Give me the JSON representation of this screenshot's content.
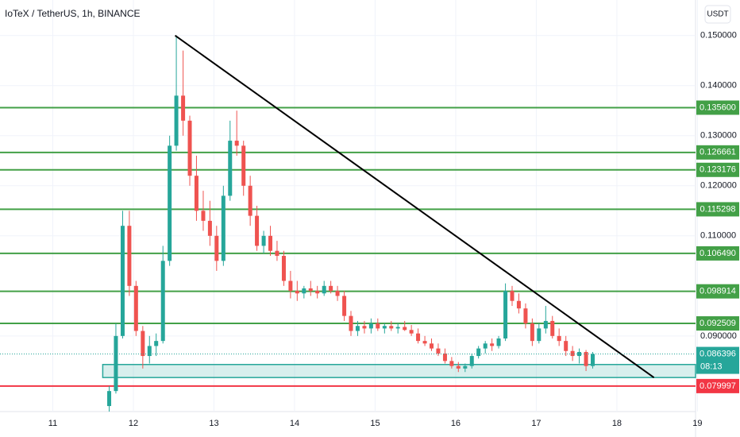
{
  "chart_data": {
    "type": "candlestick",
    "title": "IoTeX / TetherUS, 1h, BINANCE",
    "currency": "USDT",
    "up_color": "#26a69a",
    "down_color": "#ef5350",
    "grid": true,
    "xlim": [
      10.345,
      18.976
    ],
    "ylim": [
      0.0749,
      0.1571
    ],
    "xticks": [
      11,
      12,
      13,
      14,
      15,
      16,
      17,
      18,
      19
    ],
    "yticks": [
      {
        "value": 0.15,
        "label": "0.150000"
      },
      {
        "value": 0.14,
        "label": "0.140000"
      },
      {
        "value": 0.13,
        "label": "0.130000"
      },
      {
        "value": 0.12,
        "label": "0.120000"
      },
      {
        "value": 0.11,
        "label": "0.110000"
      },
      {
        "value": 0.09,
        "label": "0.090000"
      }
    ],
    "x": [
      11.7,
      11.783,
      11.867,
      11.95,
      12.033,
      12.117,
      12.2,
      12.283,
      12.367,
      12.45,
      12.533,
      12.617,
      12.7,
      12.783,
      12.867,
      12.95,
      13.033,
      13.117,
      13.2,
      13.283,
      13.367,
      13.45,
      13.533,
      13.617,
      13.7,
      13.783,
      13.867,
      13.95,
      14.033,
      14.117,
      14.2,
      14.283,
      14.367,
      14.45,
      14.533,
      14.617,
      14.7,
      14.783,
      14.867,
      14.95,
      15.033,
      15.117,
      15.2,
      15.283,
      15.367,
      15.45,
      15.533,
      15.617,
      15.7,
      15.783,
      15.867,
      15.95,
      16.033,
      16.117,
      16.2,
      16.283,
      16.367,
      16.45,
      16.533,
      16.617,
      16.7,
      16.783,
      16.867,
      16.95,
      17.033,
      17.117,
      17.2,
      17.283,
      17.367,
      17.45,
      17.533,
      17.617,
      17.7
    ],
    "open": [
      0.076,
      0.079,
      0.09,
      0.112,
      0.1,
      0.091,
      0.086,
      0.088,
      0.089,
      0.105,
      0.128,
      0.138,
      0.133,
      0.122,
      0.115,
      0.113,
      0.11,
      0.105,
      0.118,
      0.129,
      0.128,
      0.12,
      0.114,
      0.108,
      0.11,
      0.107,
      0.106,
      0.101,
      0.099,
      0.0985,
      0.0995,
      0.099,
      0.0985,
      0.1,
      0.099,
      0.098,
      0.094,
      0.091,
      0.092,
      0.0915,
      0.0925,
      0.0915,
      0.092,
      0.0915,
      0.0918,
      0.0912,
      0.0905,
      0.089,
      0.0885,
      0.0875,
      0.0865,
      0.085,
      0.084,
      0.0835,
      0.084,
      0.086,
      0.0875,
      0.0885,
      0.088,
      0.0895,
      0.099,
      0.097,
      0.0955,
      0.0925,
      0.089,
      0.0915,
      0.093,
      0.09,
      0.089,
      0.087,
      0.086,
      0.0868,
      0.084
    ],
    "high": [
      0.08,
      0.0925,
      0.115,
      0.115,
      0.101,
      0.092,
      0.09,
      0.0905,
      0.108,
      0.13,
      0.15,
      0.147,
      0.134,
      0.126,
      0.119,
      0.117,
      0.112,
      0.12,
      0.133,
      0.135,
      0.129,
      0.122,
      0.116,
      0.111,
      0.112,
      0.109,
      0.107,
      0.103,
      0.101,
      0.1,
      0.101,
      0.1,
      0.101,
      0.101,
      0.1,
      0.099,
      0.095,
      0.093,
      0.093,
      0.0935,
      0.0935,
      0.0925,
      0.093,
      0.0925,
      0.093,
      0.0922,
      0.0915,
      0.09,
      0.0895,
      0.0885,
      0.0875,
      0.0858,
      0.0848,
      0.0845,
      0.0865,
      0.088,
      0.089,
      0.0895,
      0.09,
      0.1005,
      0.1,
      0.0985,
      0.0965,
      0.0935,
      0.0925,
      0.096,
      0.094,
      0.0915,
      0.09,
      0.088,
      0.0875,
      0.0872,
      0.0868
    ],
    "low": [
      0.0749,
      0.0785,
      0.0895,
      0.098,
      0.09,
      0.0835,
      0.0845,
      0.086,
      0.0885,
      0.104,
      0.127,
      0.13,
      0.12,
      0.113,
      0.111,
      0.108,
      0.103,
      0.104,
      0.117,
      0.126,
      0.118,
      0.112,
      0.107,
      0.1065,
      0.106,
      0.105,
      0.1,
      0.0975,
      0.097,
      0.0975,
      0.098,
      0.0975,
      0.098,
      0.0985,
      0.097,
      0.093,
      0.09,
      0.09,
      0.0905,
      0.0905,
      0.091,
      0.0905,
      0.091,
      0.0905,
      0.091,
      0.09,
      0.0885,
      0.088,
      0.087,
      0.086,
      0.0845,
      0.0835,
      0.0828,
      0.0828,
      0.0835,
      0.0855,
      0.0865,
      0.087,
      0.0875,
      0.089,
      0.096,
      0.0945,
      0.0915,
      0.088,
      0.0885,
      0.0905,
      0.0895,
      0.088,
      0.086,
      0.085,
      0.0845,
      0.083,
      0.0835
    ],
    "close": [
      0.079,
      0.09,
      0.112,
      0.1,
      0.091,
      0.086,
      0.088,
      0.089,
      0.105,
      0.128,
      0.138,
      0.133,
      0.122,
      0.115,
      0.113,
      0.11,
      0.105,
      0.118,
      0.129,
      0.128,
      0.12,
      0.114,
      0.108,
      0.11,
      0.107,
      0.106,
      0.101,
      0.099,
      0.0985,
      0.0995,
      0.099,
      0.0985,
      0.1,
      0.099,
      0.098,
      0.094,
      0.091,
      0.092,
      0.0915,
      0.0925,
      0.0915,
      0.092,
      0.0915,
      0.0918,
      0.0912,
      0.0905,
      0.089,
      0.0885,
      0.0875,
      0.0865,
      0.085,
      0.084,
      0.0835,
      0.084,
      0.086,
      0.0875,
      0.0885,
      0.088,
      0.0895,
      0.099,
      0.097,
      0.0955,
      0.0925,
      0.089,
      0.0915,
      0.093,
      0.09,
      0.089,
      0.087,
      0.086,
      0.0868,
      0.084,
      0.0864
    ],
    "levels": [
      {
        "value": 0.1356,
        "label": "0.135600",
        "color": "#43a047"
      },
      {
        "value": 0.126661,
        "label": "0.126661",
        "color": "#43a047"
      },
      {
        "value": 0.123176,
        "label": "0.123176",
        "color": "#43a047"
      },
      {
        "value": 0.115298,
        "label": "0.115298",
        "color": "#43a047"
      },
      {
        "value": 0.10649,
        "label": "0.106490",
        "color": "#43a047"
      },
      {
        "value": 0.098914,
        "label": "0.098914",
        "color": "#43a047"
      },
      {
        "value": 0.092509,
        "label": "0.092509",
        "color": "#43a047"
      },
      {
        "value": 0.079997,
        "label": "0.079997",
        "color": "#f23645"
      }
    ],
    "current_price": {
      "value": 0.086396,
      "label": "0.086396",
      "countdown": "08:13",
      "color": "#26a69a"
    },
    "zone": {
      "low": 0.0817,
      "high": 0.0843,
      "x_start": 11.62,
      "color": "#26a69a"
    },
    "trendline": {
      "x": [
        12.518,
        18.46
      ],
      "y": [
        0.15,
        0.0817
      ],
      "color": "#000000"
    }
  }
}
